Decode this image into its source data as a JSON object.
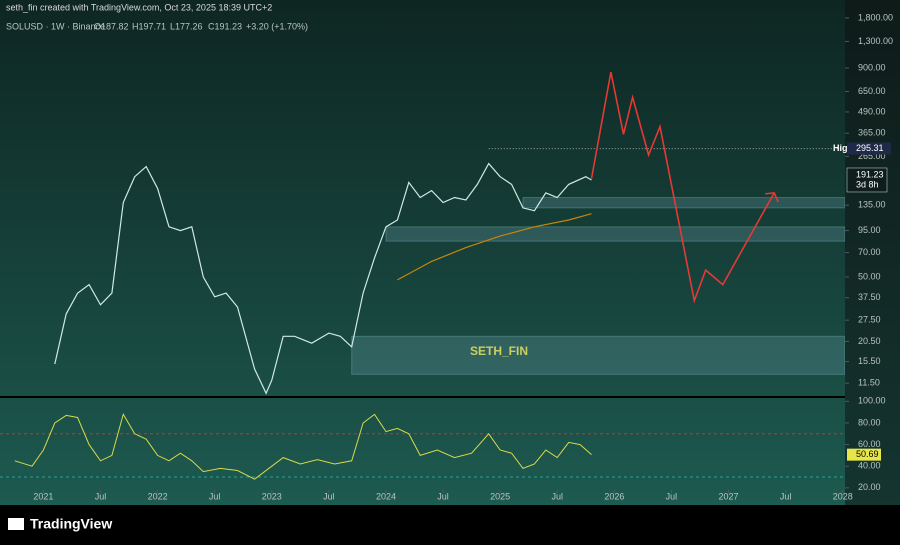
{
  "header": {
    "credit": "seth_fin created with TradingView.com, Oct 23, 2025 18:39 UTC+2",
    "symbol": "SOLUSD · 1W · Binance",
    "open": "O187.82",
    "high": "H197.71",
    "low": "L177.26",
    "close": "C191.23",
    "change": "+3.20 (+1.70%)"
  },
  "chart_data": {
    "type": "line",
    "log_scale": true,
    "annotation": "SETH_FIN",
    "xlim": [
      2020.62,
      2028.02
    ],
    "xticks": [
      2021,
      {
        "value": 2021.5,
        "label": "Jul"
      },
      2022,
      {
        "value": 2022.5,
        "label": "Jul"
      },
      2023,
      {
        "value": 2023.5,
        "label": "Jul"
      },
      2024,
      {
        "value": 2024.5,
        "label": "Jul"
      },
      2025,
      {
        "value": 2025.5,
        "label": "Jul"
      },
      2026,
      {
        "value": 2026.5,
        "label": "Jul"
      },
      2027,
      {
        "value": 2027.5,
        "label": "Jul"
      },
      2028
    ],
    "ylim": [
      9.5,
      1900
    ],
    "yticks": [
      {
        "value": 1800,
        "label": "1,800.00"
      },
      {
        "value": 1300,
        "label": "1,300.00"
      },
      {
        "value": 900,
        "label": "900.00"
      },
      {
        "value": 650,
        "label": "650.00"
      },
      {
        "value": 490,
        "label": "490.00"
      },
      {
        "value": 365,
        "label": "365.00"
      },
      {
        "value": 265,
        "label": "265.00"
      },
      {
        "value": 135,
        "label": "135.00"
      },
      {
        "value": 95,
        "label": "95.00"
      },
      {
        "value": 70,
        "label": "70.00"
      },
      {
        "value": 50,
        "label": "50.00"
      },
      {
        "value": 37.5,
        "label": "37.50"
      },
      {
        "value": 27.5,
        "label": "27.50"
      },
      {
        "value": 20.5,
        "label": "20.50"
      },
      {
        "value": 15.5,
        "label": "15.50"
      },
      {
        "value": 11.5,
        "label": "11.50"
      }
    ],
    "high_marker": {
      "label": "High",
      "value": 295.31
    },
    "countdown": "3d 8h",
    "zones": [
      {
        "x": 2025.2,
        "low": 130,
        "high": 150
      },
      {
        "x": 2024.0,
        "low": 82,
        "high": 100
      },
      {
        "x": 2023.7,
        "low": 13,
        "high": 22
      }
    ],
    "series": [
      {
        "color": "#cfe9e6",
        "x": [
          2021.1,
          2021.2,
          2021.3,
          2021.4,
          2021.5,
          2021.6,
          2021.7,
          2021.8,
          2021.9,
          2022.0,
          2022.1,
          2022.2,
          2022.3,
          2022.4,
          2022.5,
          2022.6,
          2022.7,
          2022.85,
          2022.95,
          2023.0,
          2023.1,
          2023.2,
          2023.35,
          2023.5,
          2023.6,
          2023.7,
          2023.8,
          2023.9,
          2024.0,
          2024.1,
          2024.2,
          2024.3,
          2024.4,
          2024.5,
          2024.6,
          2024.7,
          2024.8,
          2024.9,
          2025.0,
          2025.1,
          2025.2,
          2025.3,
          2025.4,
          2025.5,
          2025.6,
          2025.75,
          2025.8
        ],
        "values": [
          15,
          30,
          40,
          45,
          34,
          40,
          140,
          200,
          230,
          170,
          100,
          95,
          100,
          50,
          38,
          40,
          33,
          14,
          10,
          12,
          22,
          22,
          20,
          23,
          22,
          19,
          40,
          65,
          100,
          110,
          185,
          150,
          165,
          140,
          150,
          145,
          180,
          240,
          200,
          180,
          130,
          125,
          160,
          150,
          180,
          200,
          191.23
        ]
      },
      {
        "color": "#e53935",
        "x": [
          2025.8,
          2025.97,
          2026.08,
          2026.16,
          2026.3,
          2026.4,
          2026.7,
          2026.8,
          2026.95,
          2027.4
        ],
        "values": [
          195,
          850,
          360,
          600,
          270,
          400,
          36,
          55,
          45,
          160
        ]
      },
      {
        "color": "#c8860a",
        "x": [
          2024.1,
          2024.4,
          2024.7,
          2025.0,
          2025.3,
          2025.6,
          2025.8
        ],
        "values": [
          48,
          62,
          75,
          88,
          100,
          110,
          120
        ]
      }
    ],
    "rsi": {
      "color": "#d9d94a",
      "ylim": [
        18,
        104
      ],
      "levels": [
        70,
        30
      ],
      "yticks": [
        {
          "value": 100,
          "label": "100.00"
        },
        {
          "value": 80,
          "label": "80.00"
        },
        {
          "value": 60,
          "label": "60.00"
        },
        {
          "value": 40,
          "label": "40.00"
        },
        {
          "value": 20,
          "label": "20.00"
        }
      ],
      "x": [
        2020.75,
        2020.9,
        2021.0,
        2021.1,
        2021.2,
        2021.3,
        2021.4,
        2021.5,
        2021.6,
        2021.7,
        2021.8,
        2021.9,
        2022.0,
        2022.1,
        2022.2,
        2022.3,
        2022.4,
        2022.55,
        2022.7,
        2022.85,
        2023.0,
        2023.1,
        2023.25,
        2023.4,
        2023.55,
        2023.7,
        2023.8,
        2023.9,
        2024.0,
        2024.1,
        2024.2,
        2024.3,
        2024.45,
        2024.6,
        2024.75,
        2024.9,
        2025.0,
        2025.1,
        2025.2,
        2025.3,
        2025.4,
        2025.5,
        2025.6,
        2025.7,
        2025.8
      ],
      "values": [
        45,
        40,
        55,
        80,
        87,
        85,
        60,
        45,
        50,
        88,
        70,
        65,
        50,
        45,
        52,
        45,
        35,
        38,
        36,
        28,
        40,
        48,
        42,
        46,
        42,
        45,
        80,
        88,
        72,
        75,
        70,
        50,
        55,
        48,
        52,
        70,
        55,
        52,
        38,
        42,
        55,
        48,
        62,
        60,
        50.69
      ]
    }
  },
  "footer": {
    "logo": "TradingView"
  }
}
